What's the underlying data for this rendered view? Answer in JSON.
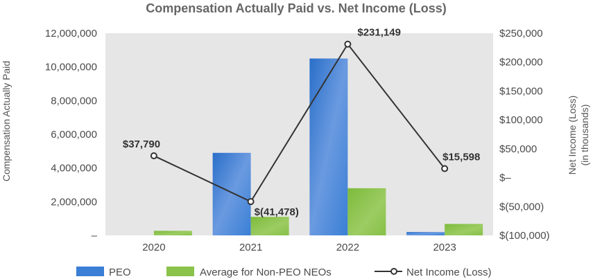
{
  "chart_data": {
    "type": "bar",
    "title": "Compensation Actually Paid vs. Net Income (Loss)",
    "categories": [
      "2020",
      "2021",
      "2022",
      "2023"
    ],
    "ylabel": "Compensation Actually Paid",
    "y2label": [
      "Net Income (Loss)",
      "(in thousands)"
    ],
    "ylim": [
      0,
      12000000
    ],
    "y2lim": [
      -100000,
      250000
    ],
    "yticks": [
      0,
      2000000,
      4000000,
      6000000,
      8000000,
      10000000,
      12000000
    ],
    "yticklabels": [
      "–",
      "2,000,000",
      "4,000,000",
      "6,000,000",
      "8,000,000",
      "10,000,000",
      "12,000,000"
    ],
    "y2ticks": [
      -100000,
      -50000,
      0,
      50000,
      100000,
      150000,
      200000,
      250000
    ],
    "y2ticklabels": [
      "$(100,000)",
      "$(50,000)",
      "$–",
      "$50,000",
      "$100,000",
      "$150,000",
      "$200,000",
      "$250,000"
    ],
    "series": [
      {
        "name": "PEO",
        "kind": "bar",
        "axis": "left",
        "color": "#3a7fd5",
        "values": [
          0,
          4900000,
          10500000,
          200000
        ]
      },
      {
        "name": "Average for Non-PEO NEOs",
        "kind": "bar",
        "axis": "left",
        "color": "#8ac24a",
        "values": [
          270000,
          1100000,
          2800000,
          680000
        ]
      },
      {
        "name": "Net Income (Loss)",
        "kind": "line",
        "axis": "right",
        "color": "#333333",
        "values": [
          37790,
          -41478,
          231149,
          15598
        ],
        "labels": [
          "$37,790",
          "$(41,478)",
          "$231,149",
          "$15,598"
        ]
      }
    ],
    "legend": {
      "position": "bottom"
    },
    "grid": false
  }
}
